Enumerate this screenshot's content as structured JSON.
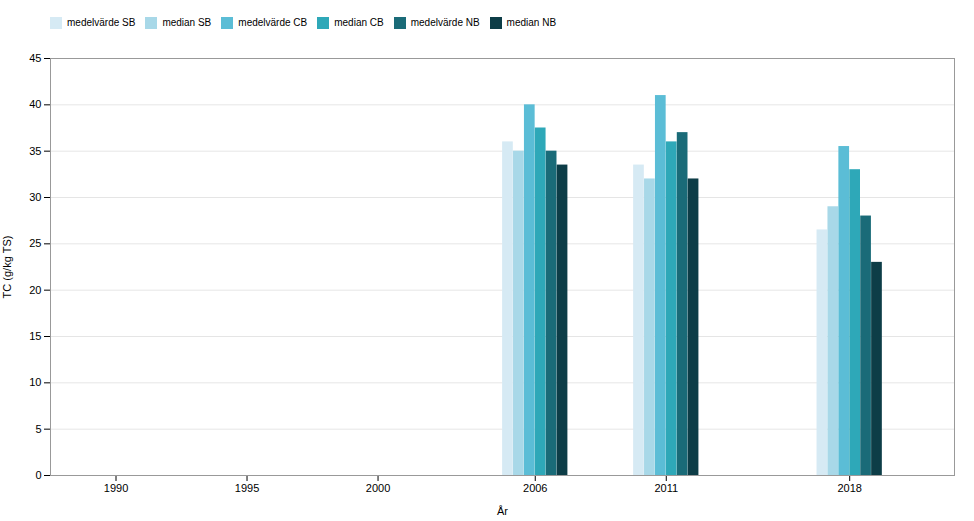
{
  "chart_data": {
    "type": "bar",
    "xlabel": "År",
    "ylabel": "TC (g/kg TS)",
    "x": [
      2006,
      2011,
      2018
    ],
    "series": [
      {
        "name": "medelvärde SB",
        "color": "#d6eaf4",
        "values": [
          36.0,
          33.5,
          26.5
        ]
      },
      {
        "name": "median SB",
        "color": "#a8d8e8",
        "values": [
          35.0,
          32.0,
          29.0
        ]
      },
      {
        "name": "medelvärde CB",
        "color": "#5bbdd6",
        "values": [
          40.0,
          41.0,
          35.5
        ]
      },
      {
        "name": "median CB",
        "color": "#2ea8b8",
        "values": [
          37.5,
          36.0,
          33.0
        ]
      },
      {
        "name": "medelvärde NB",
        "color": "#1a6b78",
        "values": [
          35.0,
          37.0,
          28.0
        ]
      },
      {
        "name": "median NB",
        "color": "#0d3d47",
        "values": [
          33.5,
          32.0,
          23.0
        ]
      }
    ],
    "xlim": [
      1987.5,
      2022.0
    ],
    "xticks": [
      1990,
      1995,
      2000,
      2006,
      2011,
      2018
    ],
    "ylim": [
      0,
      45
    ],
    "yticks": [
      0,
      5,
      10,
      15,
      20,
      25,
      30,
      35,
      40,
      45
    ],
    "grid": true,
    "legend": "top"
  }
}
